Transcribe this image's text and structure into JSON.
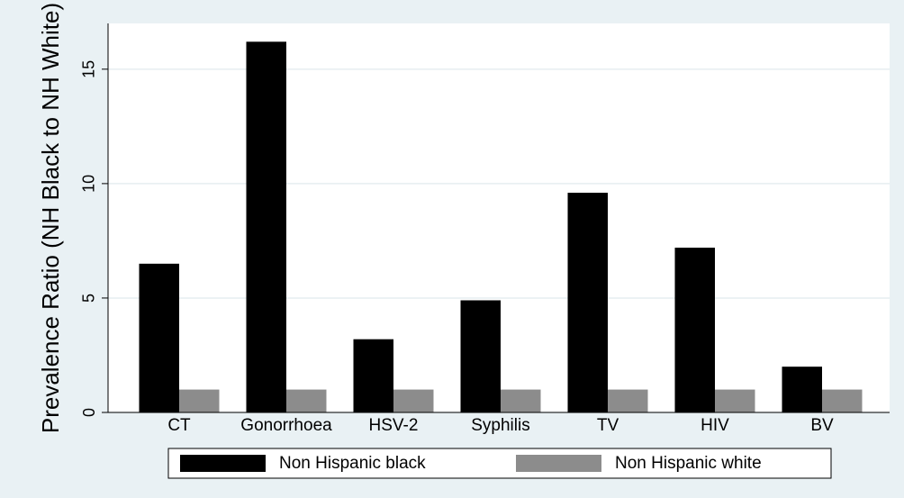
{
  "chart_data": {
    "type": "bar",
    "y_label": "Prevalence Ratio (NH Black to NH White)",
    "categories": [
      "CT",
      "Gonorrhoea",
      "HSV-2",
      "Syphilis",
      "TV",
      "HIV",
      "BV"
    ],
    "series": [
      {
        "name": "Non Hispanic black",
        "color": "#000000",
        "values": [
          6.5,
          16.2,
          3.2,
          4.9,
          9.6,
          7.2,
          2.0
        ]
      },
      {
        "name": "Non Hispanic white",
        "color": "#8c8c8c",
        "values": [
          1,
          1,
          1,
          1,
          1,
          1,
          1
        ]
      }
    ],
    "ylim": [
      0,
      17
    ],
    "yticks": [
      0,
      5,
      10,
      15
    ],
    "grid": true,
    "legend": "bottom"
  }
}
